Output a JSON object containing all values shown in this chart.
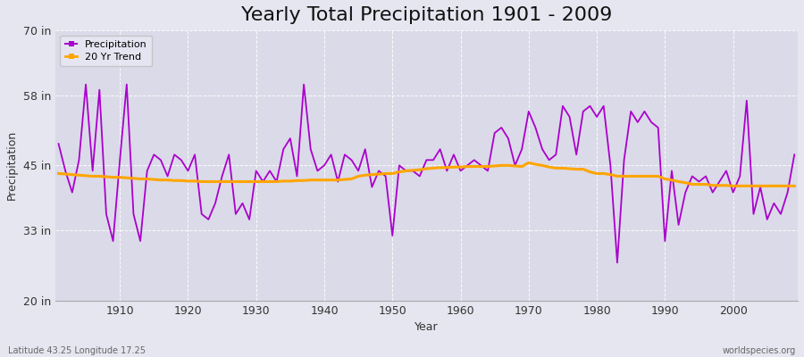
{
  "title": "Yearly Total Precipitation 1901 - 2009",
  "xlabel": "Year",
  "ylabel": "Precipitation",
  "subtitle_left": "Latitude 43.25 Longitude 17.25",
  "subtitle_right": "worldspecies.org",
  "ylim": [
    20,
    70
  ],
  "yticks": [
    20,
    33,
    45,
    58,
    70
  ],
  "ytick_labels": [
    "20 in",
    "33 in",
    "45 in",
    "58 in",
    "70 in"
  ],
  "xlim": [
    1901,
    2009
  ],
  "xticks": [
    1910,
    1920,
    1930,
    1940,
    1950,
    1960,
    1970,
    1980,
    1990,
    2000
  ],
  "years": [
    1901,
    1902,
    1903,
    1904,
    1905,
    1906,
    1907,
    1908,
    1909,
    1910,
    1911,
    1912,
    1913,
    1914,
    1915,
    1916,
    1917,
    1918,
    1919,
    1920,
    1921,
    1922,
    1923,
    1924,
    1925,
    1926,
    1927,
    1928,
    1929,
    1930,
    1931,
    1932,
    1933,
    1934,
    1935,
    1936,
    1937,
    1938,
    1939,
    1940,
    1941,
    1942,
    1943,
    1944,
    1945,
    1946,
    1947,
    1948,
    1949,
    1950,
    1951,
    1952,
    1953,
    1954,
    1955,
    1956,
    1957,
    1958,
    1959,
    1960,
    1961,
    1962,
    1963,
    1964,
    1965,
    1966,
    1967,
    1968,
    1969,
    1970,
    1971,
    1972,
    1973,
    1974,
    1975,
    1976,
    1977,
    1978,
    1979,
    1980,
    1981,
    1982,
    1983,
    1984,
    1985,
    1986,
    1987,
    1988,
    1989,
    1990,
    1991,
    1992,
    1993,
    1994,
    1995,
    1996,
    1997,
    1998,
    1999,
    2000,
    2001,
    2002,
    2003,
    2004,
    2005,
    2006,
    2007,
    2008,
    2009
  ],
  "precip": [
    49,
    44,
    40,
    46,
    60,
    44,
    59,
    36,
    31,
    46,
    60,
    36,
    31,
    44,
    47,
    46,
    43,
    47,
    46,
    44,
    47,
    36,
    35,
    38,
    43,
    47,
    36,
    38,
    35,
    44,
    42,
    44,
    42,
    48,
    50,
    43,
    60,
    48,
    44,
    45,
    47,
    42,
    47,
    46,
    44,
    48,
    41,
    44,
    43,
    32,
    45,
    44,
    44,
    43,
    46,
    46,
    48,
    44,
    47,
    44,
    45,
    46,
    45,
    44,
    51,
    52,
    50,
    45,
    48,
    55,
    52,
    48,
    46,
    47,
    56,
    54,
    47,
    55,
    56,
    54,
    56,
    45,
    27,
    46,
    55,
    53,
    55,
    53,
    52,
    31,
    44,
    34,
    40,
    43,
    42,
    43,
    40,
    42,
    44,
    40,
    43,
    57,
    36,
    41,
    35,
    38,
    36,
    40,
    47
  ],
  "trend": [
    43.5,
    43.4,
    43.3,
    43.2,
    43.1,
    43.0,
    43.0,
    42.9,
    42.8,
    42.8,
    42.7,
    42.6,
    42.5,
    42.5,
    42.4,
    42.3,
    42.3,
    42.2,
    42.2,
    42.1,
    42.1,
    42.0,
    42.0,
    42.0,
    42.0,
    42.0,
    42.0,
    42.0,
    42.0,
    42.0,
    42.0,
    42.0,
    42.0,
    42.1,
    42.1,
    42.2,
    42.2,
    42.3,
    42.3,
    42.3,
    42.3,
    42.3,
    42.4,
    42.5,
    43.0,
    43.2,
    43.3,
    43.4,
    43.5,
    43.5,
    43.8,
    44.0,
    44.1,
    44.2,
    44.4,
    44.5,
    44.6,
    44.6,
    44.7,
    44.7,
    44.8,
    44.8,
    44.8,
    44.8,
    44.9,
    45.0,
    45.0,
    44.9,
    44.8,
    45.5,
    45.2,
    45.0,
    44.7,
    44.5,
    44.5,
    44.4,
    44.3,
    44.3,
    43.8,
    43.5,
    43.5,
    43.3,
    43.0,
    43.0,
    43.0,
    43.0,
    43.0,
    43.0,
    43.0,
    42.5,
    42.3,
    42.0,
    41.8,
    41.5,
    41.5,
    41.5,
    41.3,
    41.3,
    41.3,
    41.2,
    41.2,
    41.2,
    41.2,
    41.2,
    41.2,
    41.2,
    41.2,
    41.2,
    41.2
  ],
  "precip_color": "#AA00CC",
  "trend_color": "#FFA500",
  "bg_color": "#E6E6F0",
  "plot_bg_color": "#DADAE8",
  "grid_color": "#FFFFFF",
  "legend_precip": "Precipitation",
  "legend_trend": "20 Yr Trend",
  "title_fontsize": 16,
  "axis_label_fontsize": 9,
  "tick_fontsize": 9
}
